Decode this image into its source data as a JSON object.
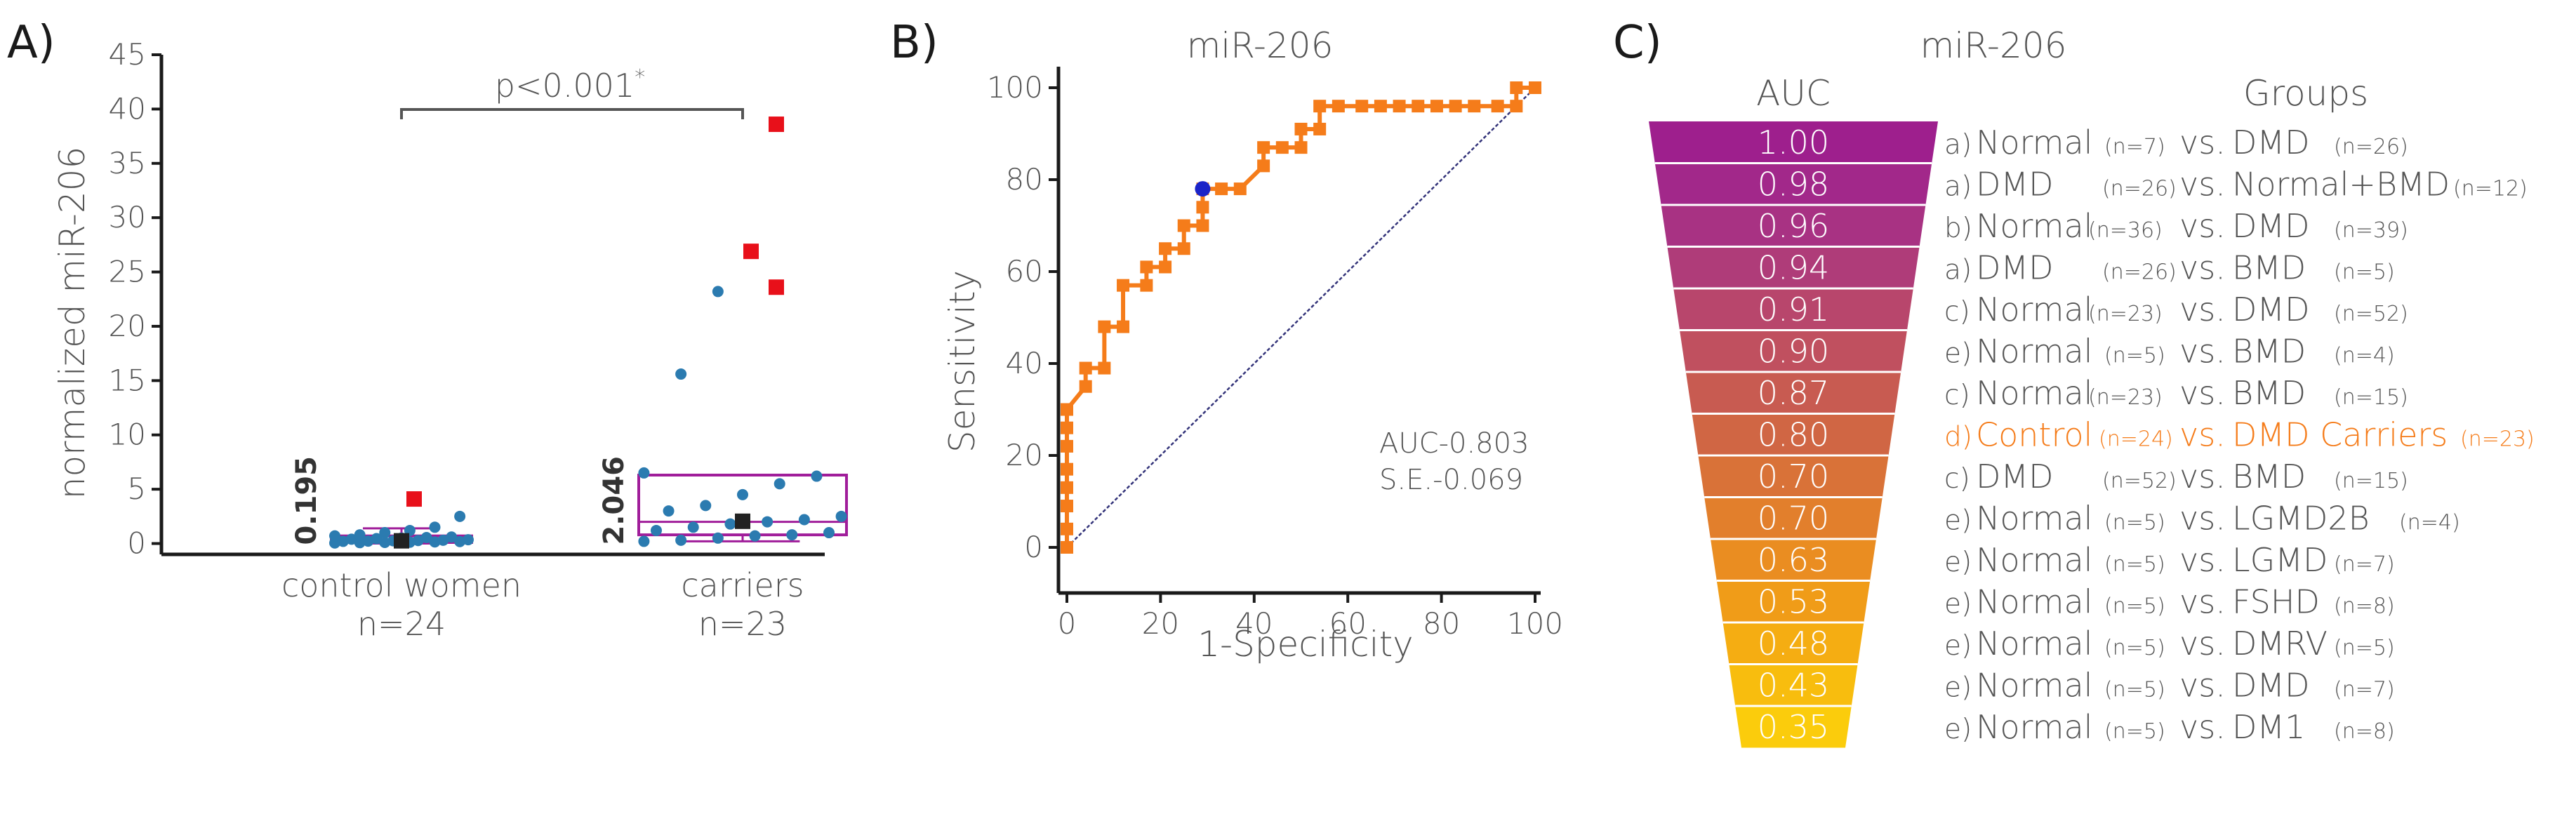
{
  "colors": {
    "axis": "#1a1a1a",
    "text": "#555555",
    "box": "#a01d9a",
    "point_blue": "#2b7bb0",
    "point_red": "#e8101a",
    "roc": "#f57c1a",
    "diag": "#34347a",
    "cutoff": "#1b24c8",
    "highlight": "#f57c1a"
  },
  "panelA": {
    "label": "A)",
    "ylabel": "normalized miR-206",
    "pvalue": "p<0.001",
    "pvalue_star": "*",
    "chart_data": {
      "type": "box",
      "ylim": [
        -1,
        45
      ],
      "yticks": [
        0,
        5,
        10,
        15,
        20,
        25,
        30,
        35,
        40,
        45
      ],
      "groups": [
        {
          "name": "control women",
          "n": "n=24",
          "median_label": "0.195",
          "box": {
            "q1": 0.1,
            "median": 0.19,
            "q3": 0.7,
            "lower": 0.0,
            "upper": 1.4
          },
          "mean": 0.25,
          "points": [
            0.05,
            0.08,
            0.1,
            0.12,
            0.15,
            0.18,
            0.2,
            0.22,
            0.25,
            0.28,
            0.3,
            0.35,
            0.4,
            0.45,
            0.5,
            0.55,
            0.6,
            0.7,
            0.8,
            1.0,
            1.2,
            1.5,
            2.5
          ],
          "outliers": [
            4.1
          ]
        },
        {
          "name": "carriers",
          "n": "n=23",
          "median_label": "2.046",
          "box": {
            "q1": 0.8,
            "median": 2.0,
            "q3": 6.3,
            "lower": 0.2,
            "upper": 6.3
          },
          "mean": 2.05,
          "points": [
            0.2,
            0.3,
            0.5,
            0.7,
            0.8,
            1.0,
            1.2,
            1.5,
            1.8,
            2.0,
            2.2,
            2.5,
            3.0,
            3.5,
            4.5,
            5.5,
            6.2,
            6.5,
            15.6,
            23.2
          ],
          "outliers": [
            23.6,
            26.9,
            38.6
          ]
        }
      ]
    }
  },
  "panelB": {
    "label": "B)",
    "title": "miR-206",
    "auc_text": "AUC-0.803",
    "se_text": "S.E.-0.069",
    "chart_data": {
      "type": "line",
      "title": "miR-206",
      "xlabel": "1-Specificity",
      "ylabel": "Sensitivity",
      "xlim": [
        0,
        100
      ],
      "ylim": [
        0,
        100
      ],
      "xticks": [
        0,
        20,
        40,
        60,
        80,
        100
      ],
      "yticks": [
        0,
        20,
        40,
        60,
        80,
        100
      ],
      "roc_x": [
        0,
        0,
        0,
        0,
        0,
        0,
        0,
        0,
        4,
        4,
        8,
        8,
        12,
        12,
        17,
        17,
        21,
        21,
        25,
        25,
        29,
        29,
        29,
        33,
        37,
        42,
        42,
        46,
        50,
        50,
        54,
        54,
        58,
        63,
        67,
        71,
        75,
        79,
        83,
        87,
        92,
        96,
        96,
        100
      ],
      "roc_y": [
        0,
        4,
        9,
        13,
        17,
        22,
        26,
        30,
        35,
        39,
        39,
        48,
        48,
        57,
        57,
        61,
        61,
        65,
        65,
        70,
        70,
        74,
        78,
        78,
        78,
        83,
        87,
        87,
        87,
        91,
        91,
        96,
        96,
        96,
        96,
        96,
        96,
        96,
        96,
        96,
        96,
        96,
        100,
        100
      ],
      "cutoff_point": {
        "x": 29,
        "y": 78
      },
      "auc": 0.803,
      "se": 0.069
    }
  },
  "panelC": {
    "label": "C)",
    "title": "miR-206",
    "auc_header": "AUC",
    "groups_header": "Groups",
    "chart_data": {
      "type": "table",
      "rows": [
        {
          "auc": "1.00",
          "value": 1.0,
          "letter": "a)",
          "g1": "Normal",
          "n1": "(n=7)",
          "vs": "vs.",
          "g2": "DMD",
          "n2": "(n=26)",
          "color": "#9e1f8d",
          "highlight": false
        },
        {
          "auc": "0.98",
          "value": 0.98,
          "letter": "a)",
          "g1": "DMD",
          "n1": "(n=26)",
          "vs": "vs.",
          "g2": "Normal+BMD",
          "n2": "(n=12)",
          "color": "#a2288a",
          "highlight": false
        },
        {
          "auc": "0.96",
          "value": 0.96,
          "letter": "b)",
          "g1": "Normal",
          "n1": "(n=36)",
          "vs": "vs.",
          "g2": "DMD",
          "n2": "(n=39)",
          "color": "#a83283",
          "highlight": false
        },
        {
          "auc": "0.94",
          "value": 0.94,
          "letter": "a)",
          "g1": "DMD",
          "n1": "(n=26)",
          "vs": "vs.",
          "g2": "BMD",
          "n2": "(n=5)",
          "color": "#af3c79",
          "highlight": false
        },
        {
          "auc": "0.91",
          "value": 0.91,
          "letter": "c)",
          "g1": "Normal",
          "n1": "(n=23)",
          "vs": "vs.",
          "g2": "DMD",
          "n2": "(n=52)",
          "color": "#b8466c",
          "highlight": false
        },
        {
          "auc": "0.90",
          "value": 0.9,
          "letter": "e)",
          "g1": "Normal",
          "n1": "(n=5)",
          "vs": "vs.",
          "g2": "BMD",
          "n2": "(n=4)",
          "color": "#c0505f",
          "highlight": false
        },
        {
          "auc": "0.87",
          "value": 0.87,
          "letter": "c)",
          "g1": "Normal",
          "n1": "(n=23)",
          "vs": "vs.",
          "g2": "BMD",
          "n2": "(n=15)",
          "color": "#c85b51",
          "highlight": false
        },
        {
          "auc": "0.80",
          "value": 0.8,
          "letter": "d)",
          "g1": "Control",
          "n1": "(n=24)",
          "vs": "vs.",
          "g2": "DMD Carriers",
          "n2": "(n=23)",
          "color": "#d06644",
          "highlight": true
        },
        {
          "auc": "0.70",
          "value": 0.7,
          "letter": "c)",
          "g1": "DMD",
          "n1": "(n=52)",
          "vs": "vs.",
          "g2": "BMD",
          "n2": "(n=15)",
          "color": "#d97238",
          "highlight": false
        },
        {
          "auc": "0.70",
          "value": 0.7,
          "letter": "e)",
          "g1": "Normal",
          "n1": "(n=5)",
          "vs": "vs.",
          "g2": "LGMD2B",
          "n2": "(n=4)",
          "color": "#e27f2c",
          "highlight": false
        },
        {
          "auc": "0.63",
          "value": 0.63,
          "letter": "e)",
          "g1": "Normal",
          "n1": "(n=5)",
          "vs": "vs.",
          "g2": "LGMD",
          "n2": "(n=7)",
          "color": "#ea8d21",
          "highlight": false
        },
        {
          "auc": "0.53",
          "value": 0.53,
          "letter": "e)",
          "g1": "Normal",
          "n1": "(n=5)",
          "vs": "vs.",
          "g2": "FSHD",
          "n2": "(n=8)",
          "color": "#f09c18",
          "highlight": false
        },
        {
          "auc": "0.48",
          "value": 0.48,
          "letter": "e)",
          "g1": "Normal",
          "n1": "(n=5)",
          "vs": "vs.",
          "g2": "DMRV",
          "n2": "(n=5)",
          "color": "#f5ad12",
          "highlight": false
        },
        {
          "auc": "0.43",
          "value": 0.43,
          "letter": "e)",
          "g1": "Normal",
          "n1": "(n=5)",
          "vs": "vs.",
          "g2": "DMD",
          "n2": "(n=7)",
          "color": "#f8bd0e",
          "highlight": false
        },
        {
          "auc": "0.35",
          "value": 0.35,
          "letter": "e)",
          "g1": "Normal",
          "n1": "(n=5)",
          "vs": "vs.",
          "g2": "DM1",
          "n2": "(n=8)",
          "color": "#fbcc0c",
          "highlight": false
        }
      ]
    }
  }
}
